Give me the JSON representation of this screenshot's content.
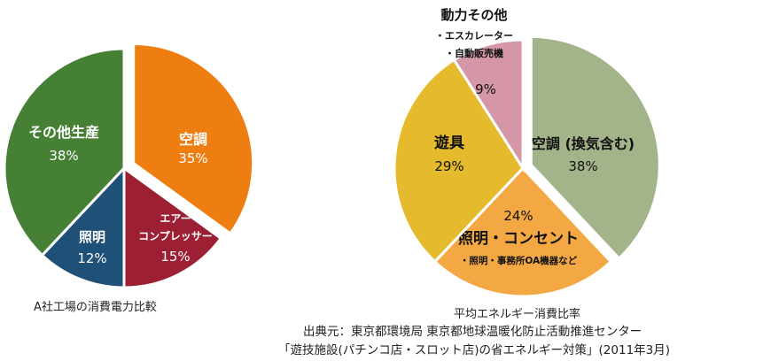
{
  "chart_data": [
    {
      "type": "pie",
      "title": "",
      "caption": "A社工場の消費電力比較",
      "unit": "%",
      "slices": [
        {
          "label": "空調",
          "value": 35,
          "color": "#ee7d12"
        },
        {
          "label": "エアー",
          "label2": "コンプレッサー",
          "value": 15,
          "color": "#9c1f33"
        },
        {
          "label": "照明",
          "value": 12,
          "color": "#1f5077"
        },
        {
          "label": "その他生産",
          "value": 38,
          "color": "#468035"
        }
      ]
    },
    {
      "type": "pie",
      "title": "",
      "caption": "平均エネルギー消費比率",
      "unit": "%",
      "slices": [
        {
          "label": "空調",
          "note": "(換気含む)",
          "value": 38,
          "color": "#a3b38a"
        },
        {
          "label": "照明・コンセント",
          "note": "・照明・事務所OA機器など",
          "value": 24,
          "color": "#f3a843"
        },
        {
          "label": "遊具",
          "value": 29,
          "color": "#e5bb2d"
        },
        {
          "label": "動力その他",
          "note": "・エスカレーター",
          "note2": "・自動販売機",
          "value": 9,
          "color": "#d596a5"
        }
      ]
    }
  ],
  "source": {
    "line1": "出典元：東京都環境局 東京都地球温暖化防止活動推進センター",
    "line2": "「遊技施設(パチンコ店・スロット店)の省エネルギー対策」(2011年3月)"
  }
}
